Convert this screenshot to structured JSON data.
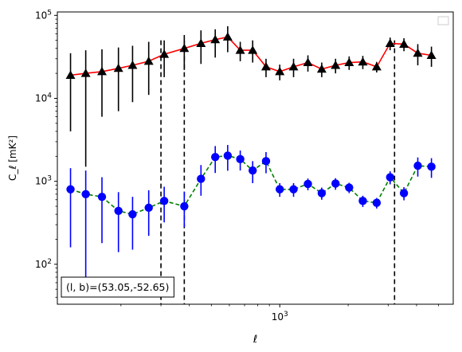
{
  "chart_data": {
    "type": "scatter",
    "title": "",
    "xlabel": "ℓ",
    "ylabel": "C_ℓ  [mK²]",
    "xscale": "log",
    "yscale": "log",
    "xlim": [
      105,
      5800
    ],
    "ylim": [
      33,
      110000
    ],
    "x_tick_labels": [
      {
        "value": 1000,
        "base": "10",
        "exp": "3"
      }
    ],
    "y_tick_labels": [
      {
        "value": 100,
        "base": "10",
        "exp": "2"
      },
      {
        "value": 1000,
        "base": "10",
        "exp": "3"
      },
      {
        "value": 10000,
        "base": "10",
        "exp": "4"
      },
      {
        "value": 100000,
        "base": "10",
        "exp": "5"
      }
    ],
    "grid": false,
    "legend": {
      "placement": "top-right",
      "entries": []
    },
    "annotation": {
      "text": "(l, b)=(53.05,-52.65)",
      "placement": "bottom-left"
    },
    "vlines": [
      {
        "x": 300,
        "color": "#000000",
        "style": "dashed"
      },
      {
        "x": 380,
        "color": "#000000",
        "style": "dashed"
      },
      {
        "x": 3200,
        "color": "#000000",
        "style": "dashed"
      }
    ],
    "series": [
      {
        "color": "#000000",
        "line_color": "#ff0000",
        "line_style": "solid",
        "marker": "triangle",
        "x": [
          120,
          140,
          165,
          195,
          225,
          265,
          310,
          380,
          450,
          520,
          590,
          670,
          760,
          870,
          1000,
          1150,
          1330,
          1530,
          1760,
          2020,
          2320,
          2670,
          3060,
          3520,
          4050,
          4650
        ],
        "y": [
          19000,
          20000,
          21000,
          23000,
          25000,
          28000,
          34000,
          40000,
          46000,
          51000,
          55000,
          38000,
          38000,
          24000,
          21000,
          24000,
          27000,
          22500,
          25000,
          27000,
          27500,
          24000,
          46000,
          45000,
          35000,
          33000
        ],
        "err_low": [
          15000,
          18500,
          15000,
          16000,
          16000,
          17000,
          16000,
          18000,
          20000,
          20000,
          19000,
          10000,
          11000,
          6000,
          4500,
          6000,
          6000,
          4500,
          5000,
          5000,
          5000,
          3500,
          8000,
          8000,
          10000,
          9000
        ],
        "err_high": [
          16000,
          18000,
          18000,
          18000,
          18000,
          20000,
          16000,
          18000,
          20000,
          17000,
          19000,
          10000,
          12000,
          6000,
          4500,
          6000,
          6000,
          4500,
          5000,
          5000,
          5000,
          3500,
          8000,
          8000,
          10000,
          9000
        ]
      },
      {
        "color": "#0000ff",
        "line_color": "#008000",
        "line_style": "dashed",
        "marker": "circle",
        "x": [
          120,
          140,
          165,
          195,
          225,
          265,
          310,
          380,
          450,
          520,
          590,
          670,
          760,
          870,
          1000,
          1150,
          1330,
          1530,
          1760,
          2020,
          2320,
          2670,
          3060,
          3520,
          4050,
          4650
        ],
        "y": [
          800,
          700,
          650,
          440,
          400,
          480,
          580,
          500,
          1070,
          1960,
          2040,
          1850,
          1350,
          1750,
          800,
          800,
          930,
          720,
          940,
          840,
          580,
          550,
          1120,
          720,
          1540,
          1500
        ],
        "err_low": [
          640,
          630,
          470,
          300,
          250,
          260,
          260,
          220,
          400,
          700,
          700,
          500,
          400,
          500,
          150,
          150,
          150,
          120,
          150,
          120,
          90,
          80,
          200,
          130,
          400,
          400
        ],
        "err_high": [
          640,
          650,
          470,
          300,
          250,
          300,
          280,
          250,
          500,
          700,
          700,
          500,
          400,
          500,
          150,
          150,
          150,
          120,
          150,
          120,
          90,
          80,
          200,
          130,
          400,
          400
        ]
      }
    ]
  }
}
